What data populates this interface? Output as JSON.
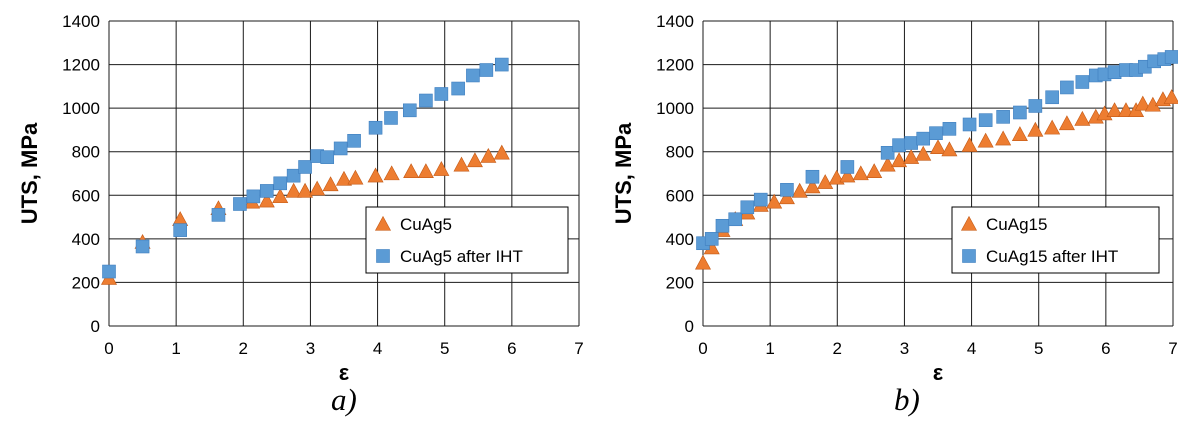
{
  "figure": {
    "captions": [
      "a)",
      "b)"
    ]
  },
  "chart_data": [
    {
      "type": "scatter",
      "xlabel": "ε",
      "ylabel": "UTS, MPa",
      "xlim": [
        0,
        7
      ],
      "ylim": [
        0,
        1400
      ],
      "x_ticks": [
        "0",
        "1",
        "2",
        "3",
        "4",
        "5",
        "6",
        "7"
      ],
      "y_ticks": [
        "0",
        "200",
        "400",
        "600",
        "800",
        "1000",
        "1200",
        "1400"
      ],
      "grid": true,
      "legend_position": "inside right",
      "series": [
        {
          "name": "CuAg5",
          "marker": "triangle",
          "color": "#ED7D31",
          "x": [
            0,
            0.5,
            1.06,
            1.63,
            2.13,
            2.35,
            2.55,
            2.75,
            2.92,
            3.1,
            3.3,
            3.5,
            3.67,
            3.97,
            4.21,
            4.5,
            4.72,
            4.95,
            5.25,
            5.45,
            5.65,
            5.85
          ],
          "y": [
            220,
            385,
            490,
            540,
            570,
            575,
            595,
            620,
            620,
            630,
            650,
            675,
            680,
            690,
            700,
            710,
            710,
            720,
            740,
            760,
            780,
            795
          ]
        },
        {
          "name": "CuAg5 after IHT",
          "marker": "square",
          "color": "#5B9BD5",
          "x": [
            0,
            0.5,
            1.06,
            1.63,
            1.95,
            2.15,
            2.35,
            2.55,
            2.75,
            2.92,
            3.1,
            3.25,
            3.45,
            3.65,
            3.97,
            4.2,
            4.48,
            4.72,
            4.95,
            5.2,
            5.42,
            5.62,
            5.85
          ],
          "y": [
            250,
            365,
            440,
            510,
            560,
            595,
            620,
            655,
            690,
            730,
            780,
            775,
            815,
            850,
            910,
            955,
            990,
            1035,
            1065,
            1090,
            1150,
            1175,
            1200
          ]
        }
      ]
    },
    {
      "type": "scatter",
      "xlabel": "ε",
      "ylabel": "UTS, MPa",
      "xlim": [
        0,
        7
      ],
      "ylim": [
        0,
        1400
      ],
      "x_ticks": [
        "0",
        "1",
        "2",
        "3",
        "4",
        "5",
        "6",
        "7"
      ],
      "y_ticks": [
        "0",
        "200",
        "400",
        "600",
        "800",
        "1000",
        "1200",
        "1400"
      ],
      "grid": true,
      "legend_position": "inside right",
      "series": [
        {
          "name": "CuAg15",
          "marker": "triangle",
          "color": "#ED7D31",
          "x": [
            0,
            0.13,
            0.29,
            0.48,
            0.66,
            0.86,
            1.06,
            1.25,
            1.44,
            1.63,
            1.82,
            1.99,
            2.15,
            2.35,
            2.55,
            2.75,
            2.92,
            3.1,
            3.28,
            3.5,
            3.67,
            3.97,
            4.21,
            4.47,
            4.72,
            4.95,
            5.2,
            5.42,
            5.65,
            5.85,
            5.98,
            6.13,
            6.3,
            6.45,
            6.55,
            6.7,
            6.85,
            6.98
          ],
          "y": [
            290,
            360,
            440,
            490,
            520,
            555,
            570,
            590,
            620,
            640,
            660,
            680,
            690,
            700,
            710,
            740,
            760,
            775,
            790,
            820,
            810,
            830,
            850,
            860,
            880,
            900,
            910,
            930,
            950,
            960,
            975,
            990,
            990,
            990,
            1020,
            1015,
            1040,
            1050
          ]
        },
        {
          "name": "CuAg15 after IHT",
          "marker": "square",
          "color": "#5B9BD5",
          "x": [
            0,
            0.13,
            0.29,
            0.48,
            0.66,
            0.86,
            1.25,
            1.63,
            2.15,
            2.75,
            2.92,
            3.1,
            3.28,
            3.47,
            3.67,
            3.97,
            4.21,
            4.47,
            4.72,
            4.95,
            5.2,
            5.42,
            5.65,
            5.85,
            5.98,
            6.13,
            6.3,
            6.45,
            6.58,
            6.72,
            6.87,
            6.98
          ],
          "y": [
            380,
            400,
            460,
            490,
            545,
            580,
            625,
            685,
            730,
            795,
            830,
            840,
            860,
            885,
            905,
            925,
            945,
            960,
            980,
            1010,
            1050,
            1095,
            1120,
            1150,
            1155,
            1165,
            1175,
            1175,
            1190,
            1215,
            1225,
            1235
          ]
        }
      ]
    }
  ]
}
